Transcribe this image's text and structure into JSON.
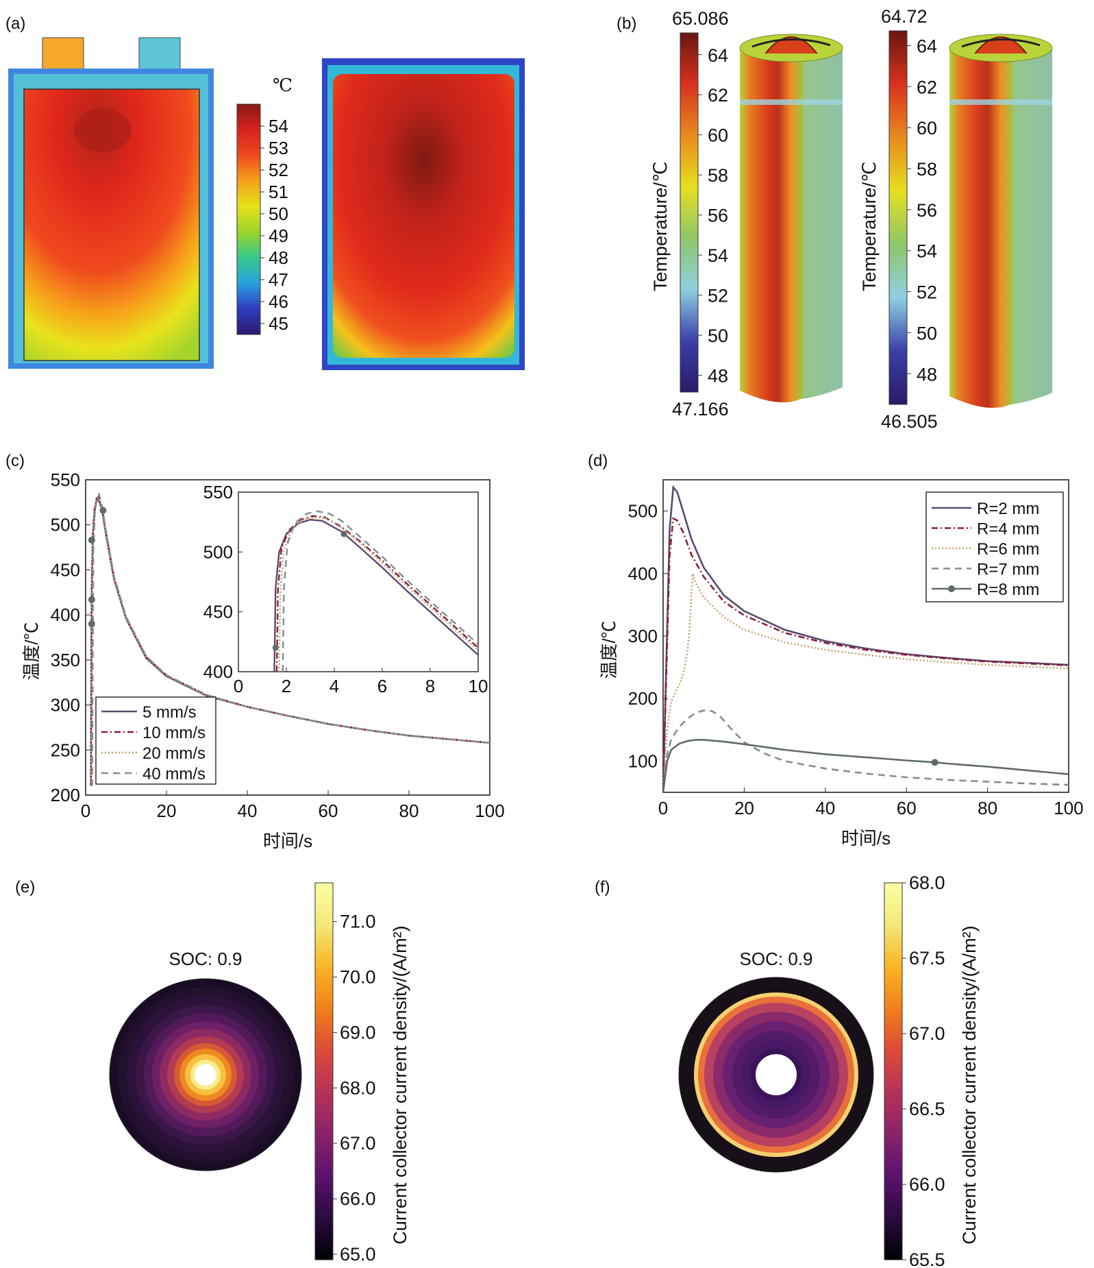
{
  "figure": {
    "panels": {
      "a": {
        "label": "(a)",
        "unit": "℃",
        "colorbar_ticks": [
          "54",
          "53",
          "52",
          "51",
          "50",
          "49",
          "48",
          "47",
          "46",
          "45"
        ],
        "colorbar_range": [
          44.5,
          55
        ],
        "images": [
          "simulated-pouch-cell-temperature",
          "thermal-camera-pouch-cell"
        ]
      },
      "b": {
        "label": "(b)",
        "axis_title": "Temperature/℃",
        "left": {
          "max_text": "65.086",
          "min_text": "47.166",
          "ticks": [
            "64",
            "62",
            "60",
            "58",
            "56",
            "54",
            "52",
            "50",
            "48"
          ]
        },
        "right": {
          "max_text": "64.72",
          "min_text": "46.505",
          "ticks": [
            "64",
            "62",
            "60",
            "58",
            "56",
            "54",
            "52",
            "50",
            "48"
          ]
        }
      },
      "e": {
        "label": "(e)",
        "soc_text": "SOC: 0.9",
        "colorbar_title": "Current collector current density/(A/m²)",
        "ticks": [
          "71.0",
          "70.0",
          "69.0",
          "68.0",
          "67.0",
          "66.0",
          "65.0"
        ],
        "range": [
          64.9,
          71.7
        ]
      },
      "f": {
        "label": "(f)",
        "soc_text": "SOC: 0.9",
        "colorbar_title": "Current collector current density/(A/m²)",
        "ticks": [
          "68.0",
          "67.5",
          "67.0",
          "66.5",
          "66.0",
          "65.5"
        ],
        "range": [
          65.5,
          68.0
        ]
      }
    }
  },
  "colors": {
    "s5": "#5a4a6e",
    "s10": "#8b1f3a",
    "s20": "#c2a06a",
    "s40": "#7f8f8f",
    "s8": "#5f6b6b",
    "thermal": [
      "#2b1a6e",
      "#2f3cbf",
      "#2aa0e0",
      "#36c98c",
      "#9bd42a",
      "#e6e21a",
      "#f5a21a",
      "#ee4a1e",
      "#d8221e",
      "#8a1a14"
    ],
    "inferno": [
      "#000004",
      "#2a0b40",
      "#5c126e",
      "#8a226a",
      "#b5325a",
      "#dc4b37",
      "#f07f1c",
      "#f9b525",
      "#f3e979",
      "#fcffa4"
    ]
  },
  "chart_data": [
    {
      "panel": "(c)",
      "type": "line",
      "xlabel": "时间/s",
      "ylabel": "温度/℃",
      "xlim": [
        0,
        100
      ],
      "ylim": [
        200,
        550
      ],
      "xticks": [
        0,
        20,
        40,
        60,
        80,
        100
      ],
      "yticks": [
        200,
        250,
        300,
        350,
        400,
        450,
        500,
        550
      ],
      "legend_position": "bottom-left",
      "series": [
        {
          "name": "5 mm/s",
          "style": "solid",
          "color": "#5a4a6e",
          "x": [
            1.3,
            1.5,
            1.8,
            2.2,
            2.7,
            3.2,
            4,
            5,
            7,
            10,
            15,
            20,
            30,
            40,
            50,
            60,
            70,
            80,
            90,
            100
          ],
          "y": [
            210,
            420,
            488,
            515,
            526,
            528,
            518,
            490,
            440,
            396,
            352,
            332,
            310,
            298,
            288,
            279,
            272,
            266,
            262,
            258
          ]
        },
        {
          "name": "10 mm/s",
          "style": "dashdot",
          "color": "#8b1f3a",
          "x": [
            1.3,
            1.5,
            1.8,
            2.2,
            2.7,
            3.2,
            4,
            5,
            7,
            10,
            15,
            20,
            30,
            40,
            50,
            60,
            70,
            80,
            90,
            100
          ],
          "y": [
            210,
            430,
            492,
            518,
            529,
            531,
            520,
            492,
            442,
            397,
            353,
            333,
            311,
            298,
            288,
            279,
            272,
            266,
            262,
            258
          ]
        },
        {
          "name": "20 mm/s",
          "style": "dotted",
          "color": "#c2a06a",
          "x": [
            1.3,
            1.5,
            1.8,
            2.2,
            2.7,
            3.2,
            4,
            5,
            7,
            10,
            15,
            20,
            30,
            40,
            50,
            60,
            70,
            80,
            90,
            100
          ],
          "y": [
            210,
            425,
            490,
            517,
            528,
            530,
            519,
            491,
            441,
            397,
            353,
            333,
            310,
            298,
            288,
            279,
            272,
            266,
            262,
            258
          ]
        },
        {
          "name": "40 mm/s",
          "style": "dashed",
          "color": "#7f8f8f",
          "x": [
            1.6,
            1.9,
            2.3,
            2.8,
            3.3,
            4,
            5,
            7,
            10,
            15,
            20,
            30,
            40,
            50,
            60,
            70,
            80,
            90,
            100
          ],
          "y": [
            210,
            470,
            515,
            530,
            534,
            522,
            494,
            443,
            398,
            354,
            333,
            311,
            298,
            288,
            279,
            272,
            266,
            262,
            258
          ]
        }
      ],
      "markers": [
        {
          "x": 1.5,
          "y": 390
        },
        {
          "x": 1.5,
          "y": 417
        },
        {
          "x": 1.5,
          "y": 483
        },
        {
          "x": 4.3,
          "y": 516
        }
      ],
      "inset": {
        "xlim": [
          0,
          10
        ],
        "ylim": [
          400,
          550
        ],
        "xticks": [
          0,
          2,
          4,
          6,
          8,
          10
        ],
        "yticks": [
          400,
          450,
          500,
          550
        ],
        "series": [
          {
            "color": "#5a4a6e",
            "style": "solid",
            "x": [
              1.5,
              1.55,
              1.7,
              2.0,
              2.5,
              3.0,
              3.5,
              4.3,
              5,
              6,
              7,
              8,
              9,
              10
            ],
            "y": [
              400,
              470,
              500,
              515,
              524,
              527,
              526,
              517,
              505,
              487,
              468,
              450,
              432,
              414
            ]
          },
          {
            "color": "#8b1f3a",
            "style": "dashdot",
            "x": [
              1.6,
              1.65,
              1.8,
              2.1,
              2.6,
              3.1,
              3.6,
              4.3,
              5,
              6,
              7,
              8,
              9,
              10
            ],
            "y": [
              400,
              470,
              503,
              518,
              527,
              530,
              529,
              521,
              510,
              493,
              474,
              456,
              438,
              420
            ]
          },
          {
            "color": "#c2a06a",
            "style": "dotted",
            "x": [
              1.7,
              1.75,
              1.9,
              2.2,
              2.7,
              3.2,
              3.7,
              4.3,
              5,
              6,
              7,
              8,
              9,
              10
            ],
            "y": [
              400,
              468,
              502,
              518,
              527,
              529,
              528,
              520,
              509,
              491,
              472,
              454,
              436,
              418
            ]
          },
          {
            "color": "#7f8f8f",
            "style": "dashed",
            "x": [
              1.85,
              1.9,
              2.05,
              2.35,
              2.85,
              3.3,
              3.8,
              4.3,
              5,
              6,
              7,
              8,
              9,
              10
            ],
            "y": [
              400,
              470,
              507,
              524,
              532,
              534,
              532,
              526,
              514,
              496,
              477,
              459,
              441,
              423
            ]
          }
        ],
        "markers": [
          {
            "x": 1.55,
            "y": 420
          },
          {
            "x": 4.4,
            "y": 515
          }
        ]
      }
    },
    {
      "panel": "(d)",
      "type": "line",
      "xlabel": "时间/s",
      "ylabel": "温度/℃",
      "xlim": [
        0,
        100
      ],
      "ylim": [
        50,
        550
      ],
      "xticks": [
        0,
        20,
        40,
        60,
        80,
        100
      ],
      "yticks": [
        100,
        200,
        300,
        400,
        500
      ],
      "legend_position": "top-right",
      "series": [
        {
          "name": "R=2 mm",
          "style": "solid",
          "color": "#5a4a6e",
          "x": [
            0,
            0.8,
            1.6,
            2.5,
            3.5,
            5,
            7,
            10,
            15,
            20,
            30,
            40,
            50,
            60,
            70,
            80,
            90,
            100
          ],
          "y": [
            50,
            260,
            470,
            538,
            530,
            498,
            455,
            410,
            365,
            340,
            310,
            292,
            280,
            271,
            265,
            260,
            257,
            254
          ]
        },
        {
          "name": "R=4 mm",
          "style": "dashdot",
          "color": "#8b1f3a",
          "x": [
            0,
            0.8,
            1.6,
            2.5,
            3.5,
            5,
            7,
            10,
            15,
            20,
            30,
            40,
            50,
            60,
            70,
            80,
            90,
            100
          ],
          "y": [
            50,
            240,
            430,
            488,
            485,
            465,
            430,
            395,
            355,
            333,
            305,
            289,
            278,
            270,
            264,
            259,
            256,
            253
          ]
        },
        {
          "name": "R=6 mm",
          "style": "dotted",
          "color": "#c2a06a",
          "x": [
            0,
            1,
            2,
            3,
            4,
            5,
            6,
            6.5,
            7,
            7.3,
            8,
            10,
            15,
            20,
            30,
            40,
            50,
            60,
            70,
            80,
            90,
            100
          ],
          "y": [
            50,
            150,
            195,
            210,
            222,
            240,
            275,
            310,
            370,
            400,
            385,
            362,
            330,
            310,
            290,
            278,
            270,
            263,
            258,
            254,
            251,
            248
          ]
        },
        {
          "name": "R=7 mm",
          "style": "dashed",
          "color": "#7f8f8f",
          "x": [
            0,
            1,
            2,
            4,
            6,
            8,
            10,
            12,
            14,
            17,
            20,
            25,
            30,
            40,
            50,
            60,
            70,
            80,
            90,
            100
          ],
          "y": [
            50,
            110,
            135,
            155,
            168,
            177,
            181,
            180,
            172,
            150,
            130,
            112,
            100,
            88,
            80,
            74,
            70,
            67,
            64,
            62
          ]
        },
        {
          "name": "R=8 mm",
          "style": "solid-marker",
          "color": "#5f6b6b",
          "x": [
            0,
            1,
            2,
            4,
            6,
            8,
            10,
            15,
            20,
            30,
            40,
            50,
            60,
            67,
            70,
            80,
            90,
            100
          ],
          "y": [
            50,
            100,
            118,
            128,
            132,
            134,
            134,
            131,
            127,
            118,
            111,
            106,
            101,
            98,
            96,
            91,
            85,
            79
          ]
        }
      ],
      "markers": [
        {
          "x": 67,
          "y": 98
        }
      ]
    }
  ]
}
